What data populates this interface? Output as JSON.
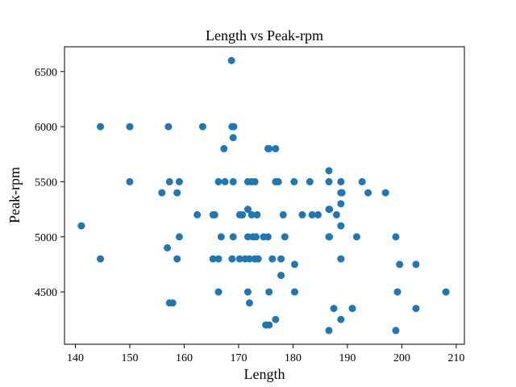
{
  "chart_data": {
    "type": "scatter",
    "title": "Length vs Peak-rpm",
    "xlabel": "Length",
    "ylabel": "Peak-rpm",
    "xlim": [
      138.0,
      211.5
    ],
    "ylim": [
      4025,
      6725
    ],
    "xticks": [
      140,
      150,
      160,
      170,
      180,
      190,
      200,
      210
    ],
    "yticks": [
      4500,
      5000,
      5500,
      6000,
      6500
    ],
    "grid": false,
    "marker_color": "#1f77b4",
    "points": [
      [
        141.1,
        5100
      ],
      [
        144.6,
        6000
      ],
      [
        144.6,
        4800
      ],
      [
        150.0,
        6000
      ],
      [
        150.0,
        5500
      ],
      [
        155.9,
        5400
      ],
      [
        156.9,
        4900
      ],
      [
        157.1,
        6000
      ],
      [
        157.3,
        5500
      ],
      [
        157.3,
        4400
      ],
      [
        157.9,
        4400
      ],
      [
        158.7,
        5400
      ],
      [
        158.7,
        4800
      ],
      [
        159.1,
        5500
      ],
      [
        159.1,
        5000
      ],
      [
        162.4,
        5200
      ],
      [
        163.4,
        6000
      ],
      [
        165.3,
        5200
      ],
      [
        165.6,
        5200
      ],
      [
        165.3,
        4800
      ],
      [
        166.3,
        5500
      ],
      [
        166.3,
        4800
      ],
      [
        166.3,
        4500
      ],
      [
        166.8,
        5000
      ],
      [
        167.3,
        5800
      ],
      [
        168.7,
        6600
      ],
      [
        168.8,
        6000
      ],
      [
        169.0,
        5900
      ],
      [
        169.1,
        6000
      ],
      [
        167.5,
        5500
      ],
      [
        168.8,
        4800
      ],
      [
        169.0,
        5000
      ],
      [
        169.0,
        5500
      ],
      [
        170.2,
        5200
      ],
      [
        170.7,
        5200
      ],
      [
        170.2,
        4800
      ],
      [
        171.2,
        4800
      ],
      [
        171.7,
        5000
      ],
      [
        171.7,
        5500
      ],
      [
        171.7,
        5250
      ],
      [
        172.0,
        4800
      ],
      [
        172.4,
        5200
      ],
      [
        172.4,
        5500
      ],
      [
        172.6,
        5000
      ],
      [
        173.0,
        5500
      ],
      [
        173.2,
        5000
      ],
      [
        173.4,
        5200
      ],
      [
        173.6,
        4800
      ],
      [
        173.0,
        4800
      ],
      [
        171.7,
        4500
      ],
      [
        172.0,
        4400
      ],
      [
        174.6,
        5000
      ],
      [
        175.4,
        5000
      ],
      [
        175.4,
        5800
      ],
      [
        175.6,
        5800
      ],
      [
        175.6,
        4500
      ],
      [
        175.0,
        4200
      ],
      [
        175.6,
        4200
      ],
      [
        176.2,
        4800
      ],
      [
        176.8,
        5800
      ],
      [
        176.8,
        5500
      ],
      [
        177.3,
        5500
      ],
      [
        176.8,
        4250
      ],
      [
        177.8,
        4800
      ],
      [
        177.8,
        4650
      ],
      [
        178.2,
        5200
      ],
      [
        178.5,
        5000
      ],
      [
        180.2,
        5500
      ],
      [
        180.3,
        4750
      ],
      [
        180.3,
        4500
      ],
      [
        181.7,
        5200
      ],
      [
        183.1,
        5500
      ],
      [
        183.5,
        5200
      ],
      [
        184.6,
        5200
      ],
      [
        186.6,
        5600
      ],
      [
        186.6,
        5500
      ],
      [
        186.6,
        5250
      ],
      [
        186.6,
        5000
      ],
      [
        186.7,
        5250
      ],
      [
        186.7,
        5000
      ],
      [
        186.6,
        4150
      ],
      [
        187.5,
        4350
      ],
      [
        188.0,
        5200
      ],
      [
        188.8,
        5500
      ],
      [
        188.8,
        5400
      ],
      [
        188.8,
        5300
      ],
      [
        188.8,
        5100
      ],
      [
        188.8,
        4800
      ],
      [
        188.8,
        4250
      ],
      [
        189.0,
        5400
      ],
      [
        190.9,
        4350
      ],
      [
        191.7,
        5000
      ],
      [
        192.7,
        5500
      ],
      [
        193.8,
        5400
      ],
      [
        197.0,
        5400
      ],
      [
        198.9,
        5000
      ],
      [
        198.9,
        4150
      ],
      [
        199.2,
        4500
      ],
      [
        199.6,
        4750
      ],
      [
        202.6,
        4750
      ],
      [
        202.6,
        4350
      ],
      [
        208.1,
        4500
      ]
    ]
  }
}
